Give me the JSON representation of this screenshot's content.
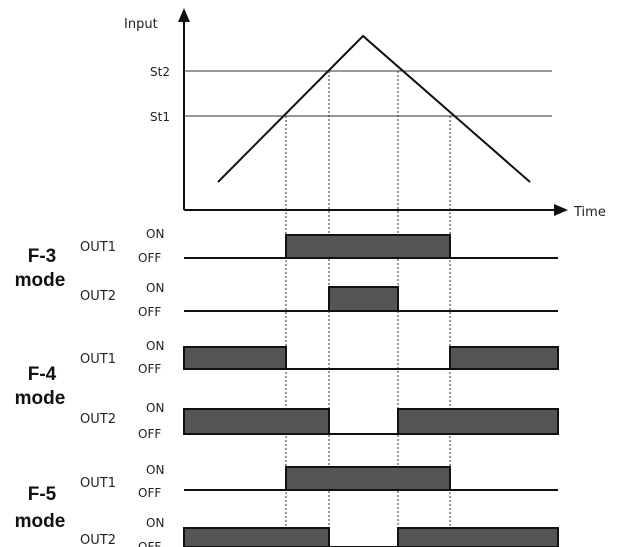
{
  "graph": {
    "y_axis_label": "Input",
    "x_axis_label": "Time",
    "thresholds": [
      "St2",
      "St1"
    ]
  },
  "states": {
    "on": "ON",
    "off": "OFF"
  },
  "modes": [
    {
      "label_line1": "F-3",
      "label_line2": "mode",
      "outputs": [
        {
          "name": "OUT1",
          "on_intervals": [
            [
              "St1_rise",
              "St1_fall"
            ]
          ]
        },
        {
          "name": "OUT2",
          "on_intervals": [
            [
              "St2_rise",
              "St2_fall"
            ]
          ]
        }
      ]
    },
    {
      "label_line1": "F-4",
      "label_line2": "mode",
      "outputs": [
        {
          "name": "OUT1",
          "on_intervals": [
            [
              "start",
              "St1_rise"
            ],
            [
              "St1_fall",
              "end"
            ]
          ]
        },
        {
          "name": "OUT2",
          "on_intervals": [
            [
              "start",
              "St2_rise"
            ],
            [
              "St2_fall",
              "end"
            ]
          ]
        }
      ]
    },
    {
      "label_line1": "F-5",
      "label_line2": "mode",
      "outputs": [
        {
          "name": "OUT1",
          "on_intervals": [
            [
              "St1_rise",
              "St1_fall"
            ]
          ]
        },
        {
          "name": "OUT2",
          "on_intervals": [
            [
              "start",
              "St2_rise"
            ],
            [
              "St2_fall",
              "end"
            ]
          ]
        }
      ]
    }
  ],
  "colors": {
    "on_fill": "#555555",
    "line": "#111111"
  }
}
